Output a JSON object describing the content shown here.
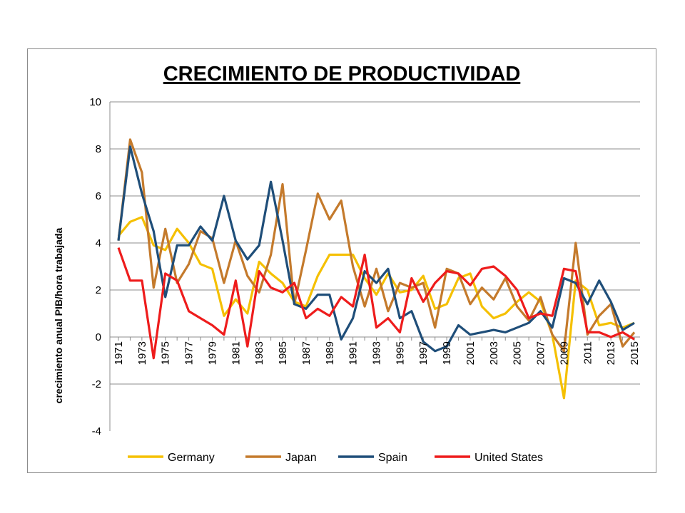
{
  "chart_data": {
    "type": "line",
    "title": "CRECIMIENTO DE PRODUCTIVIDAD",
    "xlabel": "",
    "ylabel": "crecimiento anual PIB/hora trabajada",
    "ylim": [
      -4,
      10
    ],
    "yticks": [
      -4,
      -2,
      0,
      2,
      4,
      6,
      8,
      10
    ],
    "x": [
      1971,
      1972,
      1973,
      1974,
      1975,
      1976,
      1977,
      1978,
      1979,
      1980,
      1981,
      1982,
      1983,
      1984,
      1985,
      1986,
      1987,
      1988,
      1989,
      1990,
      1991,
      1992,
      1993,
      1994,
      1995,
      1996,
      1997,
      1998,
      1999,
      2000,
      2001,
      2002,
      2003,
      2004,
      2005,
      2006,
      2007,
      2008,
      2009,
      2010,
      2011,
      2012,
      2013,
      2014,
      2015
    ],
    "xtick_labels": [
      "1971",
      "1973",
      "1975",
      "1977",
      "1979",
      "1981",
      "1983",
      "1985",
      "1987",
      "1989",
      "1991",
      "1993",
      "1995",
      "1997",
      "1999",
      "2001",
      "2003",
      "2005",
      "2007",
      "2009",
      "2011",
      "2013",
      "2015"
    ],
    "grid": true,
    "legend_position": "bottom",
    "series": [
      {
        "name": "Germany",
        "color": "#f5c000",
        "values": [
          4.3,
          4.9,
          5.1,
          3.9,
          3.7,
          4.6,
          4.0,
          3.1,
          2.9,
          0.9,
          1.6,
          1.0,
          3.2,
          2.7,
          2.3,
          1.5,
          1.3,
          2.6,
          3.5,
          3.5,
          3.5,
          2.5,
          1.8,
          2.7,
          1.9,
          2.0,
          2.6,
          1.2,
          1.4,
          2.5,
          2.7,
          1.3,
          0.8,
          1.0,
          1.5,
          1.9,
          1.5,
          0.1,
          -2.6,
          2.4,
          2.0,
          0.5,
          0.6,
          0.4,
          0.6
        ]
      },
      {
        "name": "Japan",
        "color": "#c47a2c",
        "values": [
          4.1,
          8.4,
          7.0,
          2.1,
          4.6,
          2.3,
          3.1,
          4.5,
          4.2,
          2.3,
          4.1,
          2.6,
          1.9,
          3.5,
          6.5,
          1.4,
          3.7,
          6.1,
          5.0,
          5.8,
          3.0,
          1.3,
          2.9,
          1.1,
          2.3,
          2.1,
          2.3,
          0.4,
          2.9,
          2.7,
          1.4,
          2.1,
          1.6,
          2.5,
          1.3,
          0.7,
          1.7,
          0.1,
          -0.6,
          4.0,
          0.1,
          0.9,
          1.4,
          -0.4,
          0.2
        ]
      },
      {
        "name": "Spain",
        "color": "#1f4e79",
        "values": [
          4.1,
          8.1,
          6.1,
          4.5,
          1.7,
          3.9,
          3.9,
          4.7,
          4.1,
          6.0,
          4.1,
          3.3,
          3.9,
          6.6,
          4.1,
          1.4,
          1.2,
          1.8,
          1.8,
          -0.1,
          0.8,
          2.8,
          2.3,
          2.9,
          0.8,
          1.1,
          -0.2,
          -0.6,
          -0.4,
          0.5,
          0.1,
          0.2,
          0.3,
          0.2,
          0.4,
          0.6,
          1.1,
          0.4,
          2.5,
          2.3,
          1.4,
          2.4,
          1.5,
          0.3,
          0.6
        ]
      },
      {
        "name": "United States",
        "color": "#ee1c1c",
        "values": [
          3.8,
          2.4,
          2.4,
          -0.9,
          2.7,
          2.4,
          1.1,
          0.8,
          0.5,
          0.1,
          2.4,
          -0.4,
          2.8,
          2.1,
          1.9,
          2.3,
          0.8,
          1.2,
          0.9,
          1.7,
          1.3,
          3.5,
          0.4,
          0.8,
          0.2,
          2.5,
          1.5,
          2.3,
          2.8,
          2.7,
          2.2,
          2.9,
          3.0,
          2.6,
          2.0,
          0.8,
          1.0,
          0.9,
          2.9,
          2.8,
          0.2,
          0.2,
          0.0,
          0.2,
          -0.1
        ]
      }
    ]
  }
}
